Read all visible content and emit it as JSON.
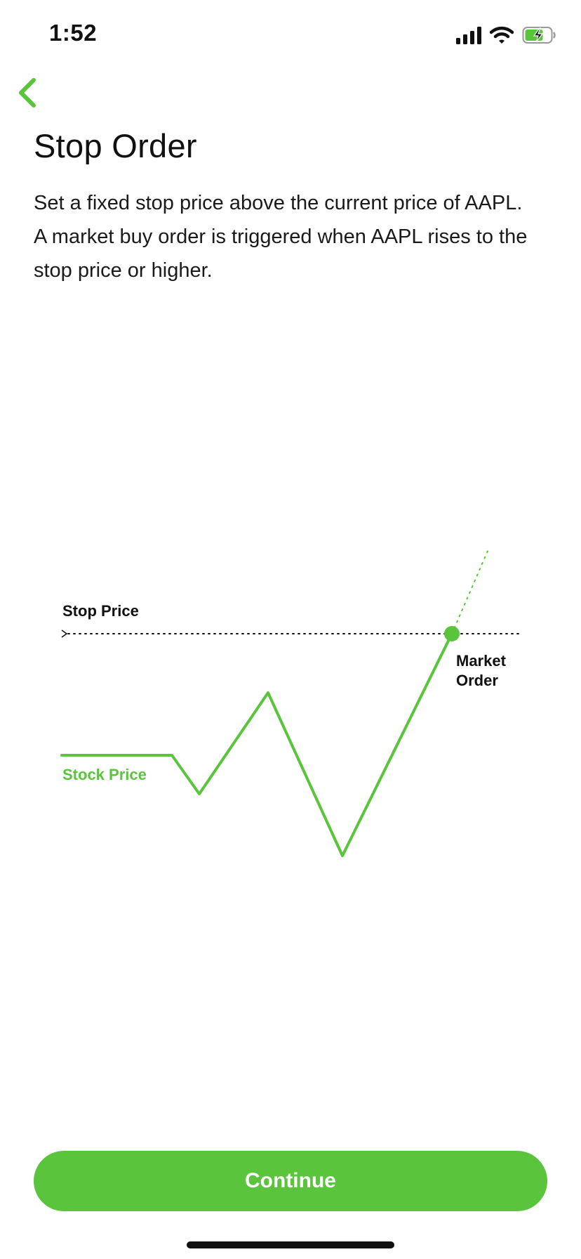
{
  "status_bar": {
    "time": "1:52",
    "icons": [
      "signal-icon",
      "wifi-icon",
      "battery-charging-icon"
    ]
  },
  "header": {
    "back_icon": "chevron-left-icon",
    "title": "Stop Order"
  },
  "description": "Set a fixed stop price above the current price of AAPL. A market buy order is triggered when AAPL rises to the stop price or higher.",
  "diagram": {
    "stop_price_label": "Stop Price",
    "stock_price_label": "Stock Price",
    "market_order_label_line1": "Market",
    "market_order_label_line2": "Order"
  },
  "footer": {
    "continue_label": "Continue"
  },
  "colors": {
    "accent": "#5ac43d",
    "text": "#111111",
    "background": "#ffffff"
  }
}
